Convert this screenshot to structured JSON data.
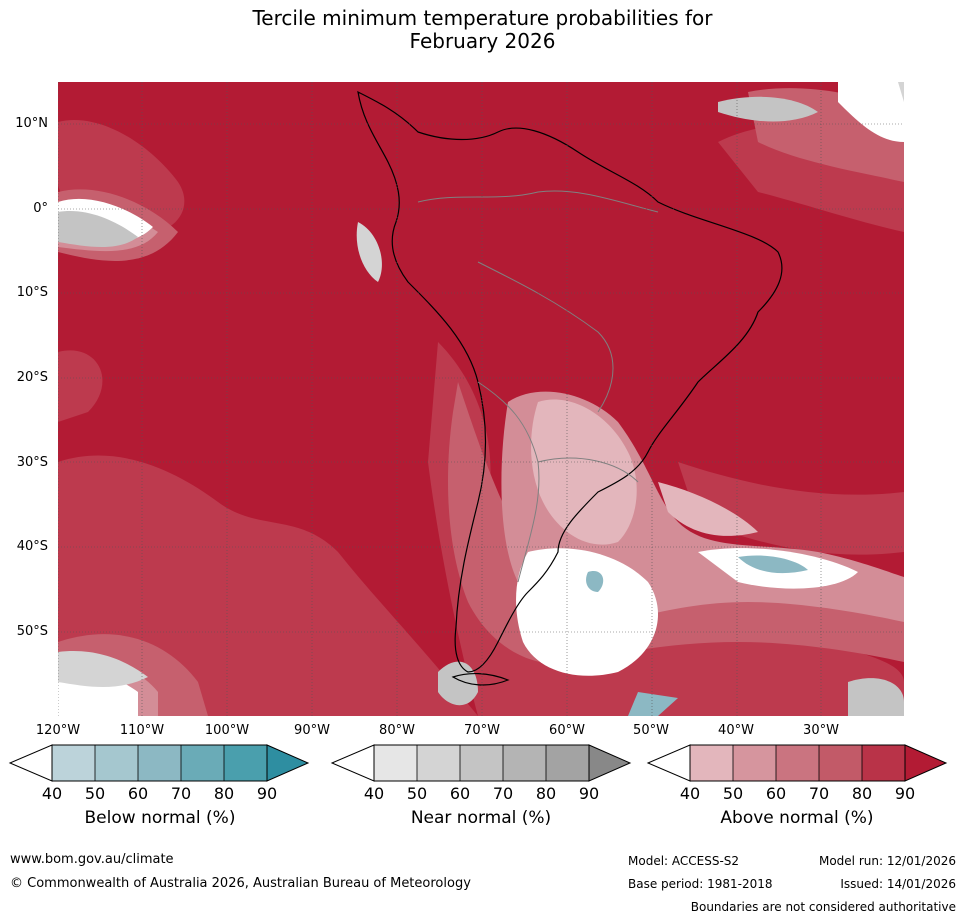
{
  "title": {
    "line1": "Tercile minimum temperature probabilities for",
    "line2": "February 2026"
  },
  "map": {
    "lat_labels": [
      "10°N",
      "0°",
      "10°S",
      "20°S",
      "30°S",
      "40°S",
      "50°S"
    ],
    "lon_labels": [
      "120°W",
      "110°W",
      "100°W",
      "90°W",
      "80°W",
      "70°W",
      "60°W",
      "50°W",
      "40°W",
      "30°W"
    ]
  },
  "colorbars": [
    {
      "title": "Below normal (%)",
      "ticks": [
        "40",
        "50",
        "60",
        "70",
        "80",
        "90"
      ],
      "colors": [
        "#ffffff",
        "#bcd3da",
        "#a5c7cf",
        "#8cb8c3",
        "#6aabb7",
        "#4a9fad",
        "#2e8ea1"
      ]
    },
    {
      "title": "Near normal (%)",
      "ticks": [
        "40",
        "50",
        "60",
        "70",
        "80",
        "90"
      ],
      "colors": [
        "#ffffff",
        "#e6e6e6",
        "#d4d4d4",
        "#c4c4c4",
        "#b4b4b4",
        "#a3a3a3",
        "#888888"
      ]
    },
    {
      "title": "Above normal (%)",
      "ticks": [
        "40",
        "50",
        "60",
        "70",
        "80",
        "90"
      ],
      "colors": [
        "#ffffff",
        "#e3b6bc",
        "#d6959e",
        "#ca7480",
        "#c25a68",
        "#b93348",
        "#b31b34"
      ]
    }
  ],
  "footer": {
    "url": "www.bom.gov.au/climate",
    "copyright": "© Commonwealth of Australia 2026, Australian Bureau of Meteorology",
    "model": "Model: ACCESS-S2",
    "base_period": "Base period: 1981-2018",
    "model_run": "Model run: 12/01/2026",
    "issued": "Issued: 14/01/2026",
    "disclaimer": "Boundaries are not considered authoritative"
  }
}
